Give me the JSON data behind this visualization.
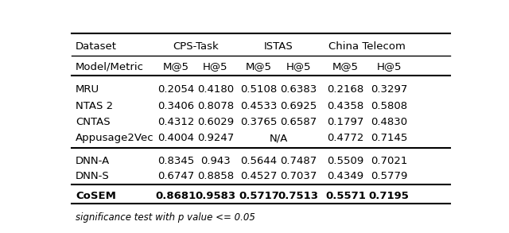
{
  "background_color": "#ffffff",
  "header_row1_labels": [
    "Dataset",
    "CPS-Task",
    "ISTAS",
    "China Telecom"
  ],
  "header_row2": [
    "Model/Metric",
    "M@5",
    "H@5",
    "M@5",
    "H@5",
    "M@5",
    "H@5"
  ],
  "data_rows": [
    [
      "MRU",
      "0.2054",
      "0.4180",
      "0.5108",
      "0.6383",
      "0.2168",
      "0.3297"
    ],
    [
      "NTAS 2",
      "0.3406",
      "0.8078",
      "0.4533",
      "0.6925",
      "0.4358",
      "0.5808"
    ],
    [
      "CNTAS",
      "0.4312",
      "0.6029",
      "0.3765",
      "0.6587",
      "0.1797",
      "0.4830"
    ],
    [
      "Appusage2Vec",
      "0.4004",
      "0.9247",
      "N/A",
      "",
      "0.4772",
      "0.7145"
    ],
    [
      "DNN-A",
      "0.8345",
      "0.943",
      "0.5644",
      "0.7487",
      "0.5509",
      "0.7021"
    ],
    [
      "DNN-S",
      "0.6747",
      "0.8858",
      "0.4527",
      "0.7037",
      "0.4349",
      "0.5779"
    ],
    [
      "CoSEM",
      "0.8681",
      "0.9583",
      "0.5717",
      "0.7513",
      "0.5571",
      "0.7195"
    ]
  ],
  "footnote": "significance test with p value <= 0.05",
  "font_size": 9.5,
  "footnote_font_size": 8.5
}
